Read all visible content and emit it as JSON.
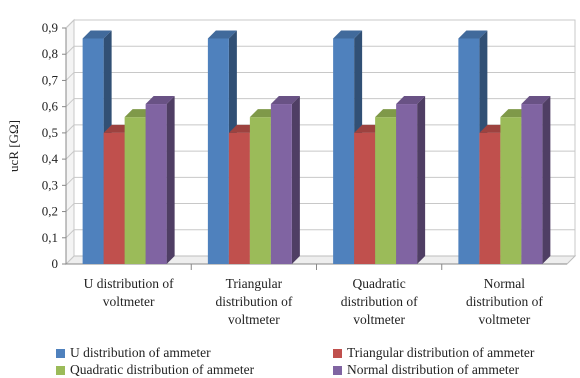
{
  "chart_data": {
    "type": "bar",
    "ylabel": "ucR [GΩ]",
    "ylim": [
      0,
      0.9
    ],
    "yticks": [
      "0",
      "0,1",
      "0,2",
      "0,3",
      "0,4",
      "0,5",
      "0,6",
      "0,7",
      "0,8",
      "0,9"
    ],
    "grid": true,
    "legend_position": "bottom",
    "categories": [
      [
        "U distribution of",
        "voltmeter"
      ],
      [
        "Triangular",
        "distribution of",
        "voltmeter"
      ],
      [
        "Quadratic",
        "distribution of",
        "voltmeter"
      ],
      [
        "Normal",
        "distribution of",
        "voltmeter"
      ]
    ],
    "series": [
      {
        "name": "U distribution of ammeter",
        "color": "#4F81BD",
        "values": [
          0.86,
          0.86,
          0.86,
          0.86
        ]
      },
      {
        "name": "Triangular distribution of ammeter",
        "color": "#C0504D",
        "values": [
          0.5,
          0.5,
          0.5,
          0.5
        ]
      },
      {
        "name": "Quadratic distribution of ammeter",
        "color": "#9BBB59",
        "values": [
          0.56,
          0.56,
          0.56,
          0.56
        ]
      },
      {
        "name": "Normal distribution of ammeter",
        "color": "#8064A2",
        "values": [
          0.61,
          0.61,
          0.61,
          0.61
        ]
      }
    ]
  }
}
